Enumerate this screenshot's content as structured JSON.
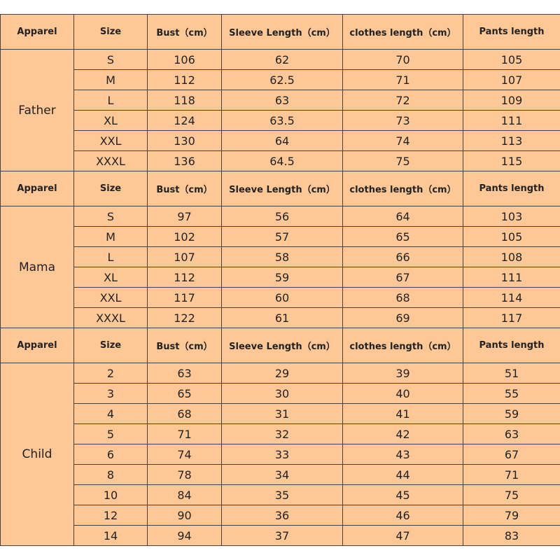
{
  "sections": [
    {
      "header": [
        "Apparel",
        "Size",
        "Bust（cm）",
        "Sleeve Length（cm）",
        "clothes length（cm）",
        "Pants length"
      ],
      "group": "Father",
      "rows": [
        [
          "S",
          "106",
          "62",
          "70",
          "105"
        ],
        [
          "M",
          "112",
          "62.5",
          "71",
          "107"
        ],
        [
          "L",
          "118",
          "63",
          "72",
          "109"
        ],
        [
          "XL",
          "124",
          "63.5",
          "73",
          "111"
        ],
        [
          "XXL",
          "130",
          "64",
          "74",
          "113"
        ],
        [
          "XXXL",
          "136",
          "64.5",
          "75",
          "115"
        ]
      ]
    },
    {
      "header": [
        "Apparel",
        "Size",
        "Bust（cm）",
        "Sleeve Length（cm）",
        "clothes length（cm）",
        "Pants length"
      ],
      "group": "Mama",
      "rows": [
        [
          "S",
          "97",
          "56",
          "64",
          "103"
        ],
        [
          "M",
          "102",
          "57",
          "65",
          "105"
        ],
        [
          "L",
          "107",
          "58",
          "66",
          "108"
        ],
        [
          "XL",
          "112",
          "59",
          "67",
          "111"
        ],
        [
          "XXL",
          "117",
          "60",
          "68",
          "114"
        ],
        [
          "XXXL",
          "122",
          "61",
          "69",
          "117"
        ]
      ]
    },
    {
      "header": [
        "Apparel",
        "Size",
        "Bust（cm）",
        "Sleeve Length（cm）",
        "clothes length（cm）",
        "Pants length"
      ],
      "group": "Child",
      "rows": [
        [
          "2",
          "63",
          "29",
          "39",
          "51"
        ],
        [
          "3",
          "65",
          "30",
          "40",
          "55"
        ],
        [
          "4",
          "68",
          "31",
          "41",
          "59"
        ],
        [
          "5",
          "71",
          "32",
          "42",
          "63"
        ],
        [
          "6",
          "74",
          "33",
          "43",
          "67"
        ],
        [
          "8",
          "78",
          "34",
          "44",
          "71"
        ],
        [
          "10",
          "84",
          "35",
          "45",
          "75"
        ],
        [
          "12",
          "90",
          "36",
          "46",
          "79"
        ],
        [
          "14",
          "94",
          "37",
          "47",
          "83"
        ]
      ]
    }
  ]
}
